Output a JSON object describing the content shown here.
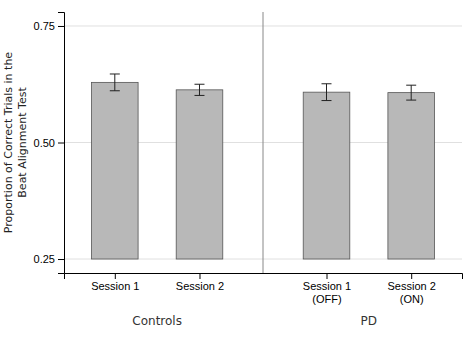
{
  "chart_data": {
    "type": "bar",
    "categories": [
      "Session 1",
      "Session 2",
      "Session 1\n(OFF)",
      "Session 2\n(ON)"
    ],
    "groups": [
      "Controls",
      "Controls",
      "PD",
      "PD"
    ],
    "values": [
      0.629,
      0.613,
      0.608,
      0.607
    ],
    "errors": [
      0.018,
      0.012,
      0.018,
      0.016
    ],
    "baseline": 0.25,
    "color": "#b8b8b8",
    "y_label": "Proportion of Correct Trials in the\nBeat Alignment Test",
    "ylim": [
      0.22,
      0.78
    ],
    "yticks": [
      0.25,
      {
        "value": 0.5,
        "label": "0.50"
      },
      0.75
    ],
    "grid": true
  }
}
